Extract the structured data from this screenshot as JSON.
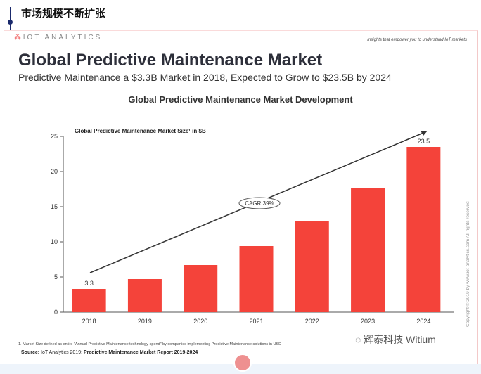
{
  "header": {
    "title": "市场规模不断扩张"
  },
  "slide": {
    "logo": "IOT ANALYTICS",
    "tagline": "Insights that empower you to understand IoT markets",
    "title": "Global Predictive Maintenance Market",
    "subtitle": "Predictive Maintenance a $3.3B Market in 2018, Expected to Grow to $23.5B by 2024",
    "footnote": "1. Market Size defined as entire \"Annual Predictive Maintenance technology-spend\" by companies implementing Predictive Maintenance solutions in USD",
    "source_label": "Source:",
    "source_text": "IoT Analytics 2019:",
    "source_report": "Predictive Maintenance Market Report 2019-2024",
    "copyright": "Copyright © 2019 by www.iot-analytics.com All rights reserved",
    "watermark": "辉泰科技 Witium"
  },
  "chart_data": {
    "type": "bar",
    "title": "Global Predictive Maintenance Market Development",
    "ylabel": "Global Predictive Maintenance Market Size¹ in $B",
    "categories": [
      "2018",
      "2019",
      "2020",
      "2021",
      "2022",
      "2023",
      "2024"
    ],
    "values": [
      3.3,
      4.7,
      6.7,
      9.4,
      13.0,
      17.6,
      23.5
    ],
    "data_labels": {
      "2018": "3.3",
      "2024": "23.5"
    },
    "ylim": [
      0,
      25
    ],
    "yticks": [
      0,
      5,
      10,
      15,
      20,
      25
    ],
    "annotation": "CAGR 39%",
    "bar_color": "#f4433a",
    "grid": false
  }
}
